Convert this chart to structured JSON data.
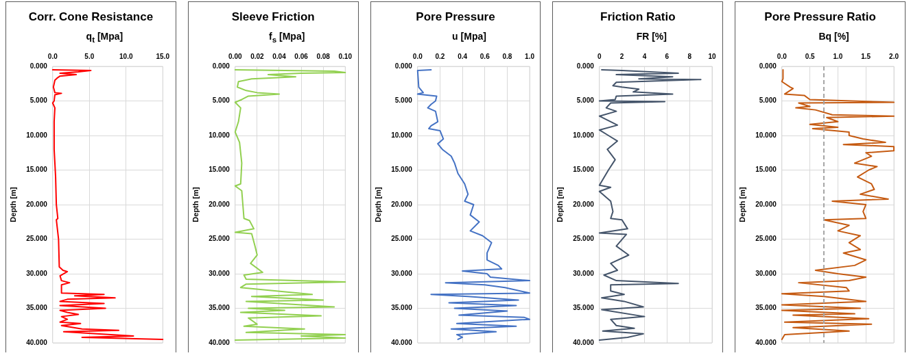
{
  "chart_data": [
    {
      "type": "line",
      "title": "Corr. Cone Resistance",
      "xlabel": "q$_{t}$ [Mpa]",
      "ylabel": "Depth [m]",
      "xlim": [
        0,
        15
      ],
      "xticks": [
        {
          "value": 0,
          "label": "0.0"
        },
        {
          "value": 5,
          "label": "5.0"
        },
        {
          "value": 10,
          "label": "10.0"
        },
        {
          "value": 15,
          "label": "15.0"
        }
      ],
      "ylim": [
        40,
        0
      ],
      "yticks": [
        {
          "value": 0,
          "label": "0.000"
        },
        {
          "value": 5,
          "label": "5.000"
        },
        {
          "value": 10,
          "label": "10.000"
        },
        {
          "value": 15,
          "label": "15.000"
        },
        {
          "value": 20,
          "label": "20.000"
        },
        {
          "value": 25,
          "label": "25.000"
        },
        {
          "value": 30,
          "label": "30.000"
        },
        {
          "value": 35,
          "label": "35.000"
        },
        {
          "value": 40,
          "label": "40.000"
        }
      ],
      "grid": true,
      "series": [
        {
          "color": "#ff0000",
          "x": [
            0,
            5.2,
            3.5,
            1.0,
            3.2,
            1.0,
            0.6,
            0.3,
            0.1,
            0.3,
            1.2,
            0.3,
            0.2,
            0,
            0.3,
            0.2,
            0.2,
            0.4,
            0.5,
            0.7,
            0.5,
            0.8,
            0.9,
            1.4,
            2.0,
            1.0,
            1.2,
            2.3,
            1.2,
            1.2,
            7.0,
            3.0,
            8.5,
            2.0,
            1.0,
            7.0,
            1.0,
            7.2,
            1.0,
            2.0,
            3.5,
            1.2,
            2.0,
            1.0,
            3.8,
            1.2,
            4.0,
            9.0,
            1.5,
            6.0,
            11.0,
            4.0,
            15.0
          ],
          "values": [
            0.5,
            0.6,
            0.8,
            1.0,
            1.2,
            1.4,
            1.7,
            2.0,
            3.0,
            3.8,
            3.9,
            4.1,
            5.0,
            5.3,
            6.0,
            8.0,
            12.0,
            16.0,
            20.0,
            22.0,
            22.2,
            25.0,
            29.0,
            29.5,
            29.7,
            30.3,
            31.0,
            31.3,
            31.6,
            32.8,
            33.0,
            33.2,
            33.5,
            33.7,
            34.0,
            34.3,
            34.6,
            35.0,
            35.3,
            35.6,
            35.9,
            36.2,
            36.6,
            37.0,
            37.2,
            37.5,
            38.0,
            38.2,
            38.4,
            38.7,
            39.0,
            39.2,
            39.5
          ]
        }
      ]
    },
    {
      "type": "line",
      "title": "Sleeve Friction",
      "xlabel": "f$_{s}$ [Mpa]",
      "ylabel": "Depth [m]",
      "xlim": [
        0,
        0.1
      ],
      "xticks": [
        {
          "value": 0,
          "label": "0.00"
        },
        {
          "value": 0.02,
          "label": "0.02"
        },
        {
          "value": 0.04,
          "label": "0.04"
        },
        {
          "value": 0.06,
          "label": "0.06"
        },
        {
          "value": 0.08,
          "label": "0.08"
        },
        {
          "value": 0.1,
          "label": "0.10"
        }
      ],
      "ylim": [
        40,
        0
      ],
      "yticks": [
        {
          "value": 0,
          "label": "0.000"
        },
        {
          "value": 5,
          "label": "5.000"
        },
        {
          "value": 10,
          "label": "10.000"
        },
        {
          "value": 15,
          "label": "15.000"
        },
        {
          "value": 20,
          "label": "20.000"
        },
        {
          "value": 25,
          "label": "25.000"
        },
        {
          "value": 30,
          "label": "30.000"
        },
        {
          "value": 35,
          "label": "35.000"
        },
        {
          "value": 40,
          "label": "40.000"
        }
      ],
      "grid": true,
      "series": [
        {
          "color": "#92d050",
          "x": [
            0,
            0.09,
            0.1,
            0.06,
            0.03,
            0.055,
            0.015,
            0.003,
            0.002,
            0.01,
            0.02,
            0.04,
            0.012,
            0.006,
            0,
            0.005,
            0.003,
            0,
            0.004,
            0.006,
            0.005,
            0,
            0.006,
            0.007,
            0.008,
            0.013,
            0.017,
            0,
            0.015,
            0.018,
            0.02,
            0.014,
            0.025,
            0.008,
            0.01,
            0.1,
            0.01,
            0.005,
            0.07,
            0.015,
            0.08,
            0.01,
            0.09,
            0.012,
            0.045,
            0.005,
            0.078,
            0.012,
            0.02,
            0.008,
            0.063,
            0.01,
            0.1,
            0.06,
            0.1,
            0
          ],
          "values": [
            0.5,
            0.7,
            0.9,
            1.0,
            1.2,
            1.5,
            1.8,
            2.2,
            3.0,
            3.5,
            3.8,
            4.0,
            4.3,
            4.8,
            5.2,
            6.0,
            8.0,
            9.5,
            11.0,
            14.0,
            17.0,
            17.3,
            18.0,
            20.0,
            22.0,
            22.3,
            23.5,
            24.0,
            24.2,
            26.0,
            27.3,
            28.5,
            29.8,
            30.2,
            30.8,
            31.2,
            31.5,
            32.0,
            33.0,
            33.3,
            33.8,
            34.0,
            34.8,
            35.0,
            35.3,
            35.6,
            36.1,
            36.4,
            37.3,
            37.6,
            38.0,
            38.5,
            38.8,
            39.0,
            39.3,
            39.6
          ]
        }
      ]
    },
    {
      "type": "line",
      "title": "Pore Pressure",
      "xlabel": "u [Mpa]",
      "ylabel": "Depth [m]",
      "xlim": [
        0,
        1
      ],
      "xticks": [
        {
          "value": 0,
          "label": "0.0"
        },
        {
          "value": 0.2,
          "label": "0.2"
        },
        {
          "value": 0.4,
          "label": "0.4"
        },
        {
          "value": 0.6,
          "label": "0.6"
        },
        {
          "value": 0.8,
          "label": "0.8"
        },
        {
          "value": 1,
          "label": "1.0"
        }
      ],
      "ylim": [
        40,
        0
      ],
      "yticks": [
        {
          "value": 0,
          "label": "0.000"
        },
        {
          "value": 5,
          "label": "5.000"
        },
        {
          "value": 10,
          "label": "10.000"
        },
        {
          "value": 15,
          "label": "15.000"
        },
        {
          "value": 20,
          "label": "20.000"
        },
        {
          "value": 25,
          "label": "25.000"
        },
        {
          "value": 30,
          "label": "30.000"
        },
        {
          "value": 35,
          "label": "35.000"
        },
        {
          "value": 40,
          "label": "40.000"
        }
      ],
      "grid": true,
      "series": [
        {
          "color": "#4472c4",
          "x": [
            0.12,
            0,
            0.01,
            0.05,
            0,
            0.17,
            0.16,
            0.12,
            0.09,
            0.16,
            0.18,
            0.12,
            0.1,
            0.2,
            0.23,
            0.18,
            0.22,
            0.3,
            0.33,
            0.36,
            0.42,
            0.45,
            0.42,
            0.5,
            0.47,
            0.55,
            0.47,
            0.58,
            0.66,
            0.62,
            0.62,
            0.72,
            0.75,
            0.4,
            0.62,
            0.65,
            1.0,
            0.25,
            0.6,
            0.78,
            1.0,
            0.12,
            0.45,
            0.9,
            0.28,
            0.88,
            0.33,
            0.8,
            0.37,
            0.95,
            1.0,
            0.35,
            0.88,
            0.3,
            0.7,
            0.35,
            0.4,
            0.36
          ],
          "values": [
            0.5,
            0.6,
            3.0,
            3.8,
            4.0,
            4.3,
            5.0,
            5.5,
            6.0,
            6.5,
            8.0,
            8.6,
            9.0,
            9.3,
            10.5,
            11.2,
            12.0,
            13.0,
            14.0,
            15.5,
            17.0,
            18.5,
            19.5,
            20.0,
            21.5,
            22.5,
            23.8,
            24.5,
            25.5,
            27.0,
            28.0,
            28.8,
            29.3,
            29.6,
            30.0,
            30.5,
            31.0,
            31.3,
            31.6,
            32.0,
            32.8,
            33.0,
            33.3,
            33.8,
            34.2,
            34.6,
            35.0,
            35.4,
            36.0,
            36.3,
            36.6,
            37.2,
            37.6,
            38.0,
            38.4,
            38.8,
            39.2,
            39.5
          ]
        }
      ]
    },
    {
      "type": "line",
      "title": "Friction Ratio",
      "xlabel": "FR [%]",
      "ylabel": "Depth [m]",
      "xlim": [
        0,
        10
      ],
      "xticks": [
        0,
        2,
        4,
        6,
        8,
        10
      ],
      "ylim": [
        40,
        0
      ],
      "yticks": [
        {
          "value": 0,
          "label": "0.000"
        },
        {
          "value": 5,
          "label": "5.000"
        },
        {
          "value": 10,
          "label": "10.000"
        },
        {
          "value": 15,
          "label": "15.000"
        },
        {
          "value": 20,
          "label": "20.000"
        },
        {
          "value": 25,
          "label": "25.000"
        },
        {
          "value": 30,
          "label": "30.000"
        },
        {
          "value": 35,
          "label": "35.000"
        },
        {
          "value": 40,
          "label": "40.000"
        }
      ],
      "grid": true,
      "series": [
        {
          "color": "#44546a",
          "x": [
            0.2,
            2.0,
            7.0,
            1.5,
            6.5,
            3.5,
            9.0,
            1.5,
            1.2,
            2.0,
            3.5,
            3.0,
            6.5,
            1.5,
            1.4,
            0,
            5.8,
            1.0,
            0.6,
            1.5,
            0,
            1.0,
            1.6,
            0,
            0.8,
            1.6,
            0.7,
            1.4,
            0.8,
            0,
            1.0,
            0,
            1.0,
            1.2,
            1.0,
            2.0,
            2.5,
            0,
            2.4,
            1.5,
            2.6,
            1.0,
            1.6,
            0.4,
            1.5,
            7.0,
            1.0,
            1.0,
            2.2,
            0.2,
            2.2,
            3.9,
            0.2,
            4.0,
            1.0,
            1.5,
            3.1,
            0.3,
            3.9,
            2.5,
            0
          ],
          "values": [
            0.5,
            0.6,
            1.0,
            1.2,
            1.5,
            1.8,
            1.9,
            2.3,
            2.8,
            3.0,
            3.3,
            3.7,
            4.0,
            4.3,
            4.8,
            5.0,
            5.1,
            5.3,
            6.0,
            6.5,
            7.2,
            8.0,
            8.5,
            9.2,
            10.0,
            10.8,
            12.0,
            13.5,
            15.0,
            17.2,
            17.5,
            18.1,
            19.5,
            21.0,
            22.0,
            22.2,
            23.5,
            24.1,
            24.3,
            26.0,
            27.3,
            28.5,
            29.5,
            30.2,
            31.0,
            31.4,
            31.6,
            32.5,
            33.0,
            33.5,
            34.0,
            34.8,
            35.2,
            36.2,
            36.6,
            37.5,
            37.9,
            38.3,
            38.7,
            39.2,
            39.6
          ]
        }
      ]
    },
    {
      "type": "line",
      "title": "Pore Pressure Ratio",
      "xlabel": "Bq [%]",
      "ylabel": "Depth [m]",
      "xlim": [
        0,
        2
      ],
      "xticks": [
        {
          "value": 0,
          "label": "0.0"
        },
        {
          "value": 0.5,
          "label": "0.5"
        },
        {
          "value": 1,
          "label": "1.0"
        },
        {
          "value": 1.5,
          "label": "1.5"
        },
        {
          "value": 2,
          "label": "2.0"
        }
      ],
      "ylim": [
        40,
        0
      ],
      "yticks": [
        {
          "value": 0,
          "label": "0.000"
        },
        {
          "value": 5,
          "label": "5.000"
        },
        {
          "value": 10,
          "label": "10.000"
        },
        {
          "value": 15,
          "label": "15.000"
        },
        {
          "value": 20,
          "label": "20.000"
        },
        {
          "value": 25,
          "label": "25.000"
        },
        {
          "value": 30,
          "label": "30.000"
        },
        {
          "value": 35,
          "label": "35.000"
        },
        {
          "value": 40,
          "label": "40.000"
        }
      ],
      "grid": true,
      "ref_lines": [
        {
          "axis": "x",
          "value": 0.75,
          "color": "#a6a6a6",
          "line_style": "dashed"
        }
      ],
      "series": [
        {
          "color": "#c55a11",
          "x": [
            0.02,
            0.02,
            0,
            0.15,
            0.2,
            0.05,
            0.4,
            0.5,
            2.0,
            0.3,
            0.5,
            0.25,
            0.6,
            0.9,
            2.0,
            0.8,
            1.0,
            0.5,
            1.0,
            0.55,
            1.2,
            1.2,
            1.45,
            1.85,
            1.1,
            2.0,
            2.0,
            1.5,
            1.6,
            1.3,
            1.7,
            1.55,
            1.35,
            1.6,
            1.65,
            1.4,
            1.9,
            0.9,
            1.5,
            1.45,
            1.5,
            0.75,
            1.2,
            1.0,
            1.4,
            1.2,
            1.4,
            1.1,
            1.5,
            1.3,
            0.6,
            1.0,
            1.5,
            1.2,
            0.3,
            1.15,
            1.2,
            0,
            0.75,
            1.5,
            0,
            1.4,
            0,
            1.3,
            0.2,
            1.55,
            0.05,
            1.6,
            0.2,
            1.2,
            0.05,
            0
          ],
          "values": [
            0.5,
            1.8,
            2.2,
            3.0,
            3.2,
            4.0,
            4.2,
            4.8,
            5.2,
            5.3,
            5.8,
            6.0,
            6.3,
            7.0,
            7.2,
            7.4,
            8.0,
            8.4,
            8.8,
            9.0,
            9.5,
            10.0,
            10.5,
            11.0,
            11.3,
            11.6,
            12.2,
            12.5,
            13.0,
            14.0,
            14.5,
            15.0,
            16.0,
            17.0,
            17.8,
            18.5,
            19.2,
            19.5,
            20.0,
            21.0,
            22.0,
            22.2,
            23.0,
            23.8,
            24.5,
            25.5,
            26.5,
            27.0,
            28.0,
            28.8,
            29.5,
            30.0,
            30.5,
            31.0,
            31.3,
            32.0,
            32.5,
            32.9,
            33.3,
            34.0,
            34.5,
            35.0,
            35.3,
            35.8,
            36.0,
            36.5,
            37.0,
            37.3,
            37.8,
            38.3,
            38.8,
            39.5
          ]
        }
      ]
    }
  ]
}
